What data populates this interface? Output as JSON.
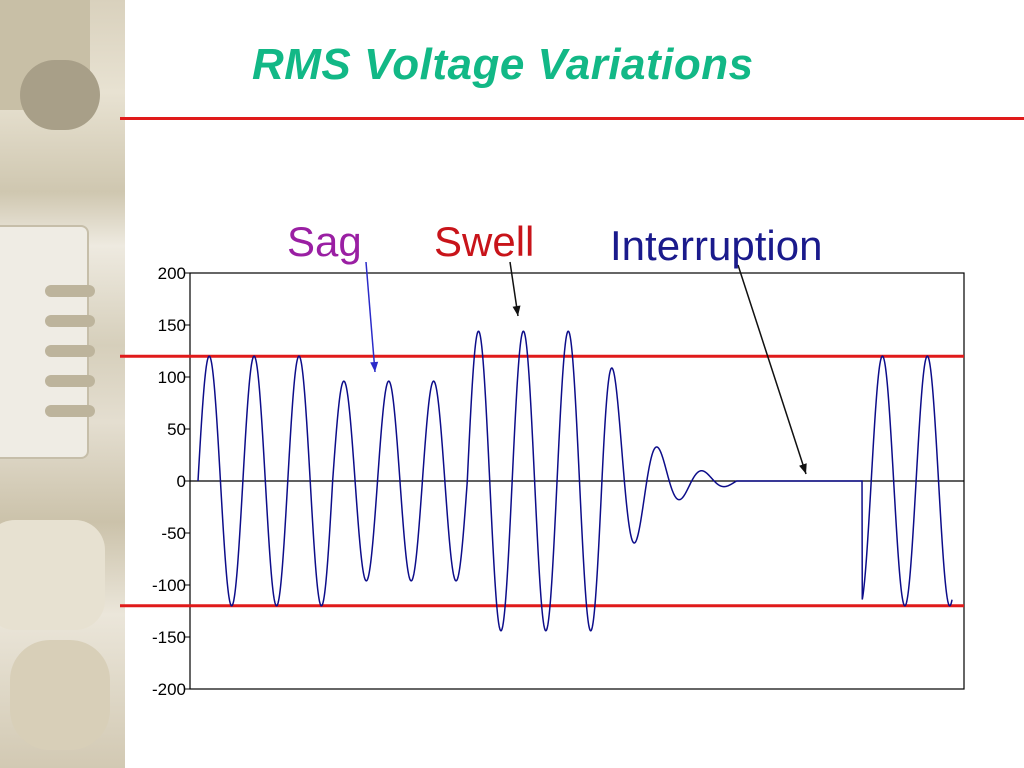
{
  "slide": {
    "title": "RMS Voltage Variations"
  },
  "annotations": [
    {
      "label": "Sag",
      "color": "#9a1fa3",
      "arrow_color": "#2b2bc9"
    },
    {
      "label": "Swell",
      "color": "#c8141a",
      "arrow_color": "#111111"
    },
    {
      "label": "Interruption",
      "color": "#1a1a8c",
      "arrow_color": "#111111"
    }
  ],
  "chart_data": {
    "type": "line",
    "title": "",
    "xlabel": "",
    "ylabel": "",
    "ylim": [
      -200,
      200
    ],
    "yticks": [
      200,
      150,
      100,
      50,
      0,
      -50,
      -100,
      -150,
      -200
    ],
    "x_domain": [
      0,
      16.8
    ],
    "grid": false,
    "series": [
      {
        "color": "#0d0d8a",
        "segments": [
          {
            "from": 0,
            "to": 3,
            "type": "sine",
            "amplitude": 120
          },
          {
            "from": 3,
            "to": 6,
            "type": "sine",
            "amplitude": 96
          },
          {
            "from": 6,
            "to": 9,
            "type": "sine",
            "amplitude": 144
          },
          {
            "from": 9,
            "to": 12,
            "type": "decay",
            "amplitude": 144,
            "decay_rate": 0.8
          },
          {
            "from": 12,
            "to": 14.8,
            "type": "flat",
            "amplitude": 0
          },
          {
            "from": 14.8,
            "to": 16.8,
            "type": "sine",
            "amplitude": 120
          }
        ]
      }
    ],
    "reference_lines": [
      {
        "y": 120,
        "color": "#e01a1a"
      },
      {
        "y": -120,
        "color": "#e01a1a"
      },
      {
        "y": 0,
        "color": "#000000"
      }
    ]
  }
}
